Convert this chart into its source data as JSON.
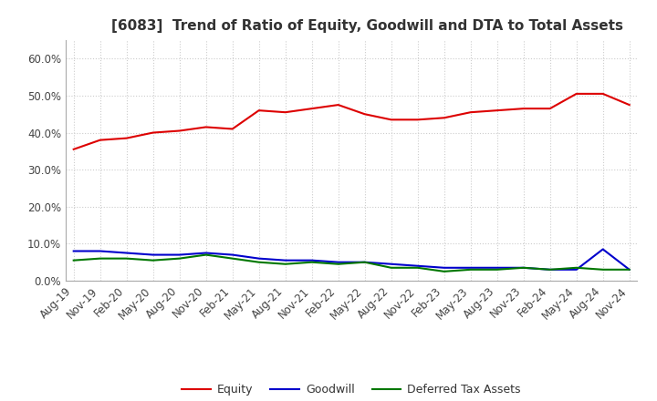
{
  "title": "[6083]  Trend of Ratio of Equity, Goodwill and DTA to Total Assets",
  "x_labels": [
    "Aug-19",
    "Nov-19",
    "Feb-20",
    "May-20",
    "Aug-20",
    "Nov-20",
    "Feb-21",
    "May-21",
    "Aug-21",
    "Nov-21",
    "Feb-22",
    "May-22",
    "Aug-22",
    "Nov-22",
    "Feb-23",
    "May-23",
    "Aug-23",
    "Nov-23",
    "Feb-24",
    "May-24",
    "Aug-24",
    "Nov-24"
  ],
  "equity": [
    35.5,
    38.0,
    38.5,
    40.0,
    40.5,
    41.5,
    41.0,
    46.0,
    45.5,
    46.5,
    47.5,
    45.0,
    43.5,
    43.5,
    44.0,
    45.5,
    46.0,
    46.5,
    46.5,
    50.5,
    50.5,
    47.5
  ],
  "goodwill": [
    8.0,
    8.0,
    7.5,
    7.0,
    7.0,
    7.5,
    7.0,
    6.0,
    5.5,
    5.5,
    5.0,
    5.0,
    4.5,
    4.0,
    3.5,
    3.5,
    3.5,
    3.5,
    3.0,
    3.0,
    8.5,
    3.0
  ],
  "dta": [
    5.5,
    6.0,
    6.0,
    5.5,
    6.0,
    7.0,
    6.0,
    5.0,
    4.5,
    5.0,
    4.5,
    5.0,
    3.5,
    3.5,
    2.5,
    3.0,
    3.0,
    3.5,
    3.0,
    3.5,
    3.0,
    3.0
  ],
  "equity_color": "#dd0000",
  "goodwill_color": "#0000cc",
  "dta_color": "#007700",
  "ylim": [
    0,
    65
  ],
  "yticks": [
    0,
    10,
    20,
    30,
    40,
    50,
    60
  ],
  "background_color": "#ffffff",
  "grid_color": "#cccccc",
  "legend_labels": [
    "Equity",
    "Goodwill",
    "Deferred Tax Assets"
  ],
  "title_fontsize": 11,
  "tick_fontsize": 8.5,
  "legend_fontsize": 9
}
